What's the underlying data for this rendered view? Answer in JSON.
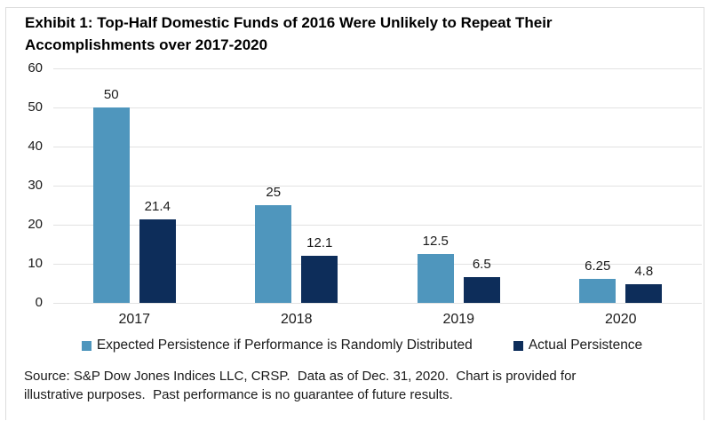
{
  "page": {
    "title_lines": [
      "Exhibit 1: Top-Half Domestic Funds of 2016 Were Unlikely to Repeat Their",
      "Accomplishments over 2017-2020"
    ],
    "source_lines": [
      "Source: S&P Dow Jones Indices LLC, CRSP.  Data as of Dec. 31, 2020.  Chart is provided for",
      "illustrative purposes.  Past performance is no guarantee of future results."
    ]
  },
  "colors": {
    "expected_bar": "#4F96BD",
    "actual_bar": "#0D2D5A",
    "gridline": "#E2E2E2",
    "border": "#DCDCDC"
  },
  "chart_data": {
    "type": "bar",
    "title": "Exhibit 1: Top-Half Domestic Funds of 2016 Were Unlikely to Repeat Their Accomplishments over 2017-2020",
    "categories": [
      "2017",
      "2018",
      "2019",
      "2020"
    ],
    "series": [
      {
        "name": "Expected Persistence if Performance is Randomly Distributed",
        "slug": "expected",
        "color": "#4F96BD",
        "values": [
          50,
          25,
          12.5,
          6.25
        ],
        "labels": [
          "50",
          "25",
          "12.5",
          "6.25"
        ]
      },
      {
        "name": "Actual Persistence",
        "slug": "actual",
        "color": "#0D2D5A",
        "values": [
          21.4,
          12.1,
          6.5,
          4.8
        ],
        "labels": [
          "21.4",
          "12.1",
          "6.5",
          "4.8"
        ]
      }
    ],
    "xlabel": "",
    "ylabel": "",
    "ylim": [
      0,
      60
    ],
    "ytick_step": 10,
    "grid": true,
    "legend_position": "bottom"
  }
}
